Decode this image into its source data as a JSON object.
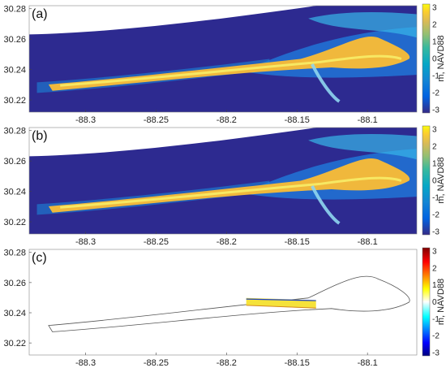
{
  "chart_data": [
    {
      "type": "heatmap",
      "panel_label": "(a)",
      "x_ticks": [
        "-88.3",
        "-88.25",
        "-88.2",
        "-88.15",
        "-88.1"
      ],
      "y_ticks": [
        "30.28",
        "30.26",
        "30.24",
        "30.22"
      ],
      "xlim": [
        -88.34,
        -88.065
      ],
      "ylim": [
        30.212,
        30.282
      ],
      "colorbar": {
        "label": "m, NAVD88",
        "ticks": [
          "3",
          "2",
          "1",
          "0",
          "-1",
          "-2",
          "-3"
        ],
        "range": [
          -3,
          3
        ],
        "colormap": "parula"
      },
      "background_value": -3
    },
    {
      "type": "heatmap",
      "panel_label": "(b)",
      "x_ticks": [
        "-88.3",
        "-88.25",
        "-88.2",
        "-88.15",
        "-88.1"
      ],
      "y_ticks": [
        "30.28",
        "30.26",
        "30.24",
        "30.22"
      ],
      "xlim": [
        -88.34,
        -88.065
      ],
      "ylim": [
        30.212,
        30.282
      ],
      "colorbar": {
        "label": "m, NAVD88",
        "ticks": [
          "3",
          "2",
          "1",
          "0",
          "-1",
          "-2",
          "-3"
        ],
        "range": [
          -3,
          3
        ],
        "colormap": "parula"
      },
      "background_value": -3
    },
    {
      "type": "heatmap",
      "panel_label": "(c)",
      "x_ticks": [
        "-88.3",
        "-88.25",
        "-88.2",
        "-88.15",
        "-88.1"
      ],
      "y_ticks": [
        "30.28",
        "30.26",
        "30.24",
        "30.22"
      ],
      "xlim": [
        -88.34,
        -88.065
      ],
      "ylim": [
        30.212,
        30.282
      ],
      "colorbar": {
        "label": "m, NAVD88",
        "ticks": [
          "3",
          "2",
          "1",
          "0",
          "-1",
          "-2",
          "-3"
        ],
        "range": [
          -3,
          3
        ],
        "colormap": "jet"
      },
      "background_value": 0
    }
  ]
}
